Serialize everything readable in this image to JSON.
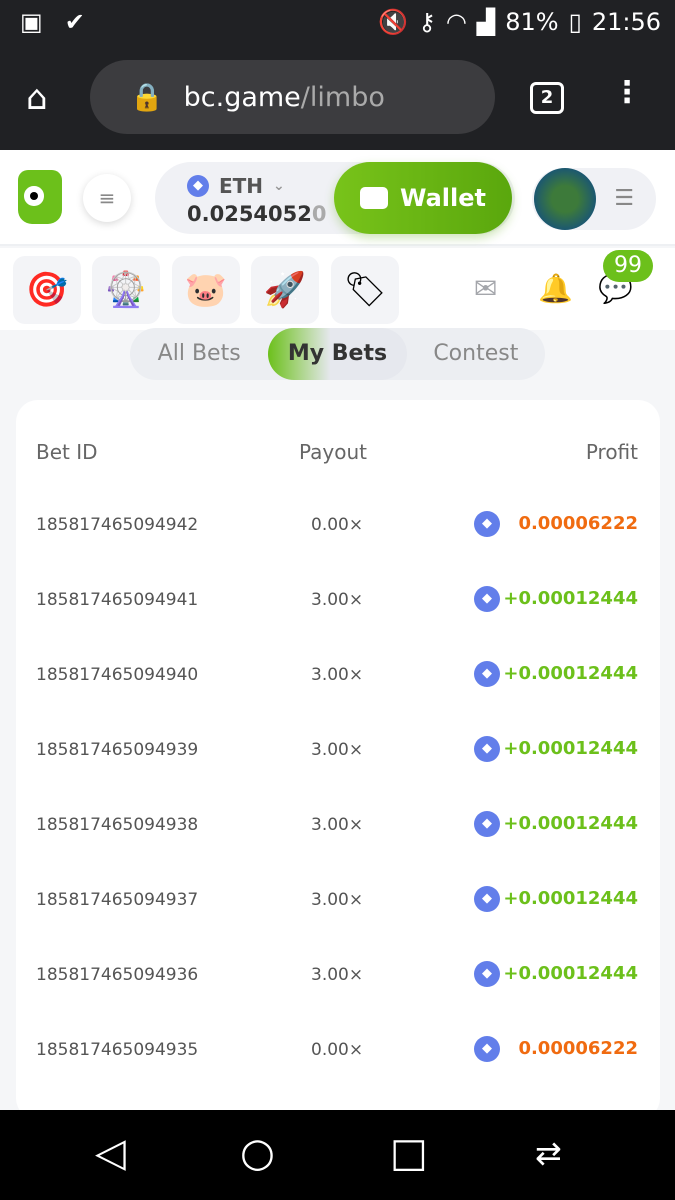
{
  "status_bar": {
    "battery": "81%",
    "time": "21:56"
  },
  "browser": {
    "url_host": "bc.game",
    "url_path": "/limbo",
    "tab_count": "2"
  },
  "header": {
    "currency": "ETH",
    "balance_main": "0.0254052",
    "balance_tail": "0",
    "wallet_label": "Wallet"
  },
  "notifications": {
    "chat_badge": "99"
  },
  "tabs": [
    {
      "label": "All Bets"
    },
    {
      "label": "My Bets",
      "active": true
    },
    {
      "label": "Contest"
    }
  ],
  "table": {
    "headers": {
      "bet_id": "Bet ID",
      "payout": "Payout",
      "profit": "Profit"
    },
    "rows": [
      {
        "bet_id": "185817465094942",
        "payout": "0.00×",
        "profit": "0.00006222",
        "win": false
      },
      {
        "bet_id": "185817465094941",
        "payout": "3.00×",
        "profit": "+0.00012444",
        "win": true
      },
      {
        "bet_id": "185817465094940",
        "payout": "3.00×",
        "profit": "+0.00012444",
        "win": true
      },
      {
        "bet_id": "185817465094939",
        "payout": "3.00×",
        "profit": "+0.00012444",
        "win": true
      },
      {
        "bet_id": "185817465094938",
        "payout": "3.00×",
        "profit": "+0.00012444",
        "win": true
      },
      {
        "bet_id": "185817465094937",
        "payout": "3.00×",
        "profit": "+0.00012444",
        "win": true
      },
      {
        "bet_id": "185817465094936",
        "payout": "3.00×",
        "profit": "+0.00012444",
        "win": true
      },
      {
        "bet_id": "185817465094935",
        "payout": "0.00×",
        "profit": "0.00006222",
        "win": false
      }
    ]
  },
  "colors": {
    "accent": "#6cc01b",
    "win": "#6cc01b",
    "loss": "#f06b10",
    "eth": "#627eea"
  }
}
